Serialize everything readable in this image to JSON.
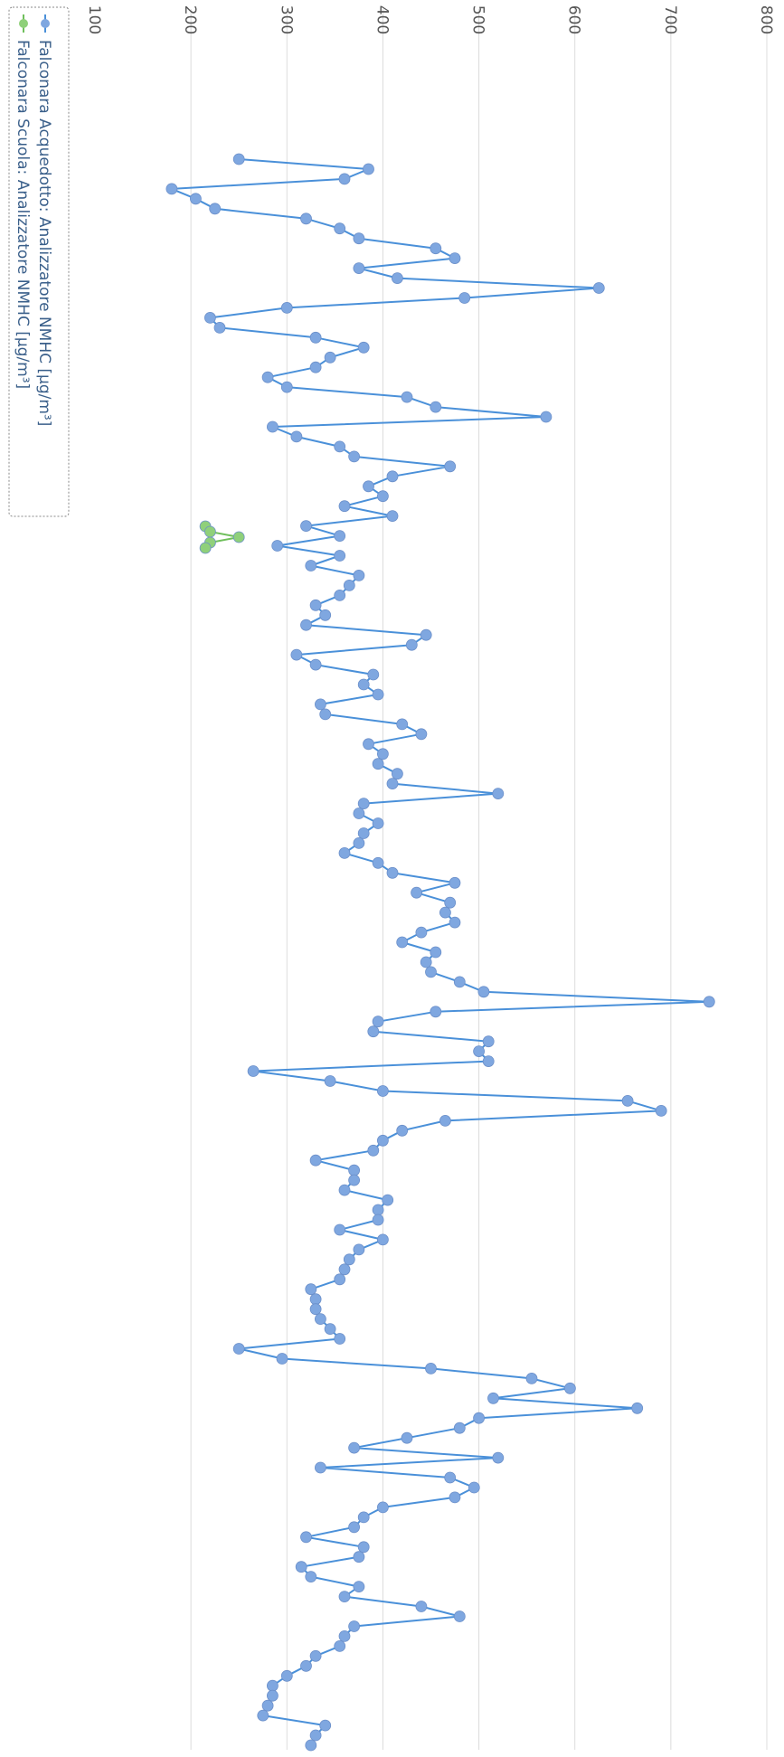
{
  "chart_data": {
    "type": "line",
    "rotated": "90deg-clockwise",
    "y_axis": {
      "min": 100,
      "max": 800,
      "ticks": [
        100,
        200,
        300,
        400,
        500,
        600,
        700,
        800
      ],
      "grid": true
    },
    "legend": {
      "placement": "bottom-left"
    },
    "series": [
      {
        "name": "Falconara Acquedotto: Analizzatore NMHC [µg/m³]",
        "color": "#7fa7e0",
        "line_color": "#4a90d9",
        "values": [
          250,
          385,
          360,
          180,
          205,
          225,
          320,
          355,
          375,
          455,
          475,
          375,
          415,
          625,
          485,
          300,
          220,
          230,
          330,
          380,
          345,
          330,
          280,
          300,
          425,
          455,
          570,
          285,
          310,
          355,
          370,
          470,
          410,
          385,
          400,
          360,
          410,
          320,
          355,
          290,
          355,
          325,
          375,
          365,
          355,
          330,
          340,
          320,
          445,
          430,
          310,
          330,
          390,
          380,
          395,
          335,
          340,
          420,
          440,
          385,
          400,
          395,
          415,
          410,
          520,
          380,
          375,
          395,
          380,
          375,
          360,
          395,
          410,
          475,
          435,
          470,
          465,
          475,
          440,
          420,
          455,
          445,
          450,
          480,
          505,
          740,
          455,
          395,
          390,
          510,
          500,
          510,
          265,
          345,
          400,
          655,
          690,
          465,
          420,
          400,
          390,
          330,
          370,
          370,
          360,
          405,
          395,
          395,
          355,
          400,
          375,
          365,
          360,
          355,
          325,
          330,
          330,
          335,
          345,
          355,
          250,
          295,
          450,
          555,
          595,
          515,
          665,
          500,
          480,
          425,
          370,
          520,
          335,
          470,
          495,
          475,
          400,
          380,
          370,
          320,
          380,
          375,
          315,
          325,
          375,
          360,
          440,
          480,
          370,
          360,
          355,
          330,
          320,
          300,
          285,
          285,
          280,
          275,
          340,
          330,
          325
        ]
      },
      {
        "name": "Falconara Scuola: Analizzatore NMHC [µg/m³]",
        "color": "#8fd07a",
        "line_color": "#6fbf5c",
        "values": [
          215,
          220,
          250,
          220,
          215
        ]
      }
    ]
  }
}
